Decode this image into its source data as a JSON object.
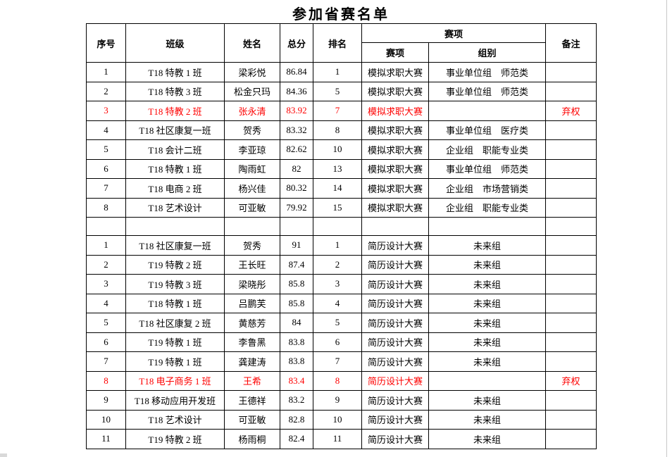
{
  "title": "参加省赛名单",
  "colors": {
    "text": "#000000",
    "forfeit_red": "#fe0000",
    "border": "#000000",
    "background": "#ffffff"
  },
  "table": {
    "headers": {
      "index": "序号",
      "class": "班级",
      "name": "姓名",
      "score": "总分",
      "rank": "排名",
      "event_group": "赛项",
      "event_sub": "赛项",
      "group_sub": "组别",
      "remark": "备注"
    },
    "sections": [
      {
        "rows": [
          {
            "index": "1",
            "class": "T18 特教 1 班",
            "name": "梁彩悦",
            "score": "86.84",
            "rank": "1",
            "event": "模拟求职大赛",
            "group": "事业单位组　师范类",
            "remark": "",
            "forfeit": false
          },
          {
            "index": "2",
            "class": "T18 特教 3 班",
            "name": "松金只玛",
            "score": "84.36",
            "rank": "5",
            "event": "模拟求职大赛",
            "group": "事业单位组　师范类",
            "remark": "",
            "forfeit": false
          },
          {
            "index": "3",
            "class": "T18 特教 2 班",
            "name": "张永清",
            "score": "83.92",
            "rank": "7",
            "event": "模拟求职大赛",
            "group": "",
            "remark": "弃权",
            "forfeit": true
          },
          {
            "index": "4",
            "class": "T18 社区康复一班",
            "name": "贺秀",
            "score": "83.32",
            "rank": "8",
            "event": "模拟求职大赛",
            "group": "事业单位组　医疗类",
            "remark": "",
            "forfeit": false
          },
          {
            "index": "5",
            "class": "T18 会计二班",
            "name": "李亚琼",
            "score": "82.62",
            "rank": "10",
            "event": "模拟求职大赛",
            "group": "企业组　职能专业类",
            "remark": "",
            "forfeit": false
          },
          {
            "index": "6",
            "class": "T18 特教 1 班",
            "name": "陶雨虹",
            "score": "82",
            "rank": "13",
            "event": "模拟求职大赛",
            "group": "事业单位组　师范类",
            "remark": "",
            "forfeit": false
          },
          {
            "index": "7",
            "class": "T18 电商 2 班",
            "name": "杨兴佳",
            "score": "80.32",
            "rank": "14",
            "event": "模拟求职大赛",
            "group": "企业组　市场营销类",
            "remark": "",
            "forfeit": false
          },
          {
            "index": "8",
            "class": "T18 艺术设计",
            "name": "可亚敏",
            "score": "79.92",
            "rank": "15",
            "event": "模拟求职大赛",
            "group": "企业组　职能专业类",
            "remark": "",
            "forfeit": false
          }
        ]
      },
      {
        "rows": [
          {
            "index": "1",
            "class": "T18 社区康复一班",
            "name": "贺秀",
            "score": "91",
            "rank": "1",
            "event": "简历设计大赛",
            "group": "未来组",
            "remark": "",
            "forfeit": false
          },
          {
            "index": "2",
            "class": "T19 特教 2 班",
            "name": "王长旺",
            "score": "87.4",
            "rank": "2",
            "event": "简历设计大赛",
            "group": "未来组",
            "remark": "",
            "forfeit": false
          },
          {
            "index": "3",
            "class": "T19 特教 3 班",
            "name": "梁晓彤",
            "score": "85.8",
            "rank": "3",
            "event": "简历设计大赛",
            "group": "未来组",
            "remark": "",
            "forfeit": false
          },
          {
            "index": "4",
            "class": "T18 特教 1 班",
            "name": "吕鹏芙",
            "score": "85.8",
            "rank": "4",
            "event": "简历设计大赛",
            "group": "未来组",
            "remark": "",
            "forfeit": false
          },
          {
            "index": "5",
            "class": "T18 社区康复 2 班",
            "name": "黄慈芳",
            "score": "84",
            "rank": "5",
            "event": "简历设计大赛",
            "group": "未来组",
            "remark": "",
            "forfeit": false
          },
          {
            "index": "6",
            "class": "T19 特教 1 班",
            "name": "李鲁黑",
            "score": "83.8",
            "rank": "6",
            "event": "简历设计大赛",
            "group": "未来组",
            "remark": "",
            "forfeit": false
          },
          {
            "index": "7",
            "class": "T19 特教 1 班",
            "name": "龚建涛",
            "score": "83.8",
            "rank": "7",
            "event": "简历设计大赛",
            "group": "未来组",
            "remark": "",
            "forfeit": false
          },
          {
            "index": "8",
            "class": "T18 电子商务 1 班",
            "name": "王希",
            "score": "83.4",
            "rank": "8",
            "event": "简历设计大赛",
            "group": "",
            "remark": "弃权",
            "forfeit": true
          },
          {
            "index": "9",
            "class": "T18 移动应用开发班",
            "name": "王德祥",
            "score": "83.2",
            "rank": "9",
            "event": "简历设计大赛",
            "group": "未来组",
            "remark": "",
            "forfeit": false
          },
          {
            "index": "10",
            "class": "T18 艺术设计",
            "name": "可亚敏",
            "score": "82.8",
            "rank": "10",
            "event": "简历设计大赛",
            "group": "未来组",
            "remark": "",
            "forfeit": false
          },
          {
            "index": "11",
            "class": "T19 特教 2 班",
            "name": "杨雨桐",
            "score": "82.4",
            "rank": "11",
            "event": "简历设计大赛",
            "group": "未来组",
            "remark": "",
            "forfeit": false
          }
        ]
      }
    ]
  }
}
